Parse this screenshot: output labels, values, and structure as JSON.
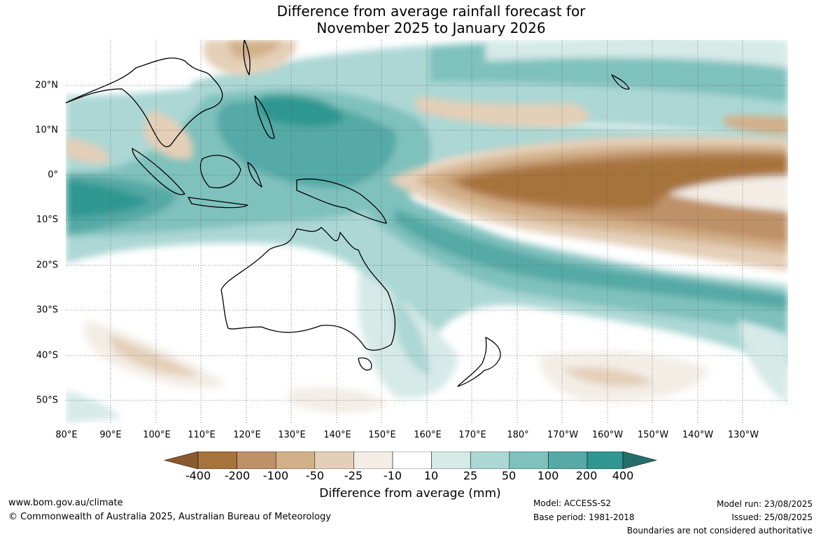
{
  "title": {
    "line1": "Difference from average rainfall forecast for",
    "line2": "November 2025 to January 2026"
  },
  "map": {
    "lat_labels": [
      "20°N",
      "10°N",
      "0°",
      "10°S",
      "20°S",
      "30°S",
      "40°S",
      "50°S"
    ],
    "lon_labels": [
      "80°E",
      "90°E",
      "100°E",
      "110°E",
      "120°E",
      "130°E",
      "140°E",
      "150°E",
      "160°E",
      "170°E",
      "180°",
      "170°W",
      "160°W",
      "150°W",
      "140°W",
      "130°W"
    ]
  },
  "colorbar": {
    "title": "Difference from average (mm)",
    "labels": [
      "-400",
      "-200",
      "-100",
      "-50",
      "-25",
      "-10",
      "10",
      "25",
      "50",
      "100",
      "200",
      "400"
    ],
    "colors": [
      "#8a5a2e",
      "#a7733d",
      "#bf9168",
      "#d2b08a",
      "#e4cfb8",
      "#f3ede6",
      "#ffffff",
      "#d6eae8",
      "#acd7d4",
      "#7fc1bd",
      "#55a9a6",
      "#2f9791",
      "#236e6b"
    ]
  },
  "footer": {
    "url": "www.bom.gov.au/climate",
    "copyright": "© Commonwealth of Australia 2025, Australian Bureau of Meteorology",
    "model": "Model: ACCESS-S2",
    "base_period": "Base period: 1981-2018",
    "model_run": "Model run: 23/08/2025",
    "issued": "Issued: 25/08/2025",
    "disclaimer": "Boundaries are not considered authoritative"
  }
}
